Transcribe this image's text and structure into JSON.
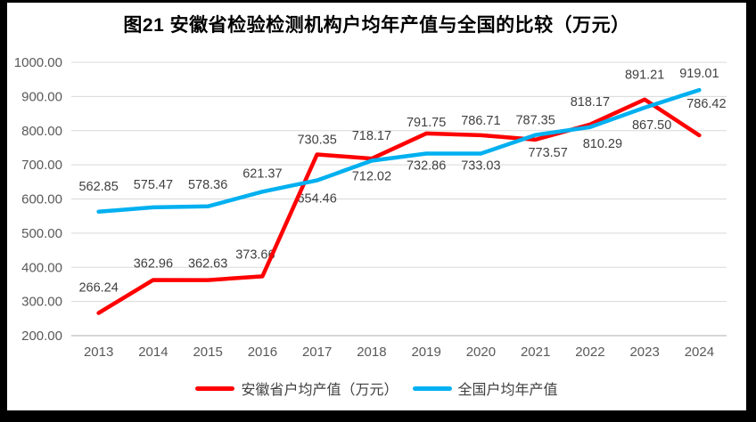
{
  "chart_data": {
    "type": "line",
    "title": "图21 安徽省检验检测机构户均年产值与全国的比较（万元）",
    "categories": [
      "2013",
      "2014",
      "2015",
      "2016",
      "2017",
      "2018",
      "2019",
      "2020",
      "2021",
      "2022",
      "2023",
      "2024"
    ],
    "series": [
      {
        "name": "安徽省户均产值（万元）",
        "color": "#FF0000",
        "values": [
          266.24,
          362.96,
          362.63,
          373.66,
          730.35,
          718.17,
          791.75,
          786.71,
          773.57,
          818.17,
          891.21,
          786.42
        ],
        "label_side": [
          "above",
          "above",
          "above",
          "above",
          "above",
          "above",
          "above",
          "above",
          "below",
          "above",
          "above",
          "above"
        ],
        "label_dx": [
          0,
          0,
          0,
          -8,
          0,
          0,
          0,
          0,
          14,
          0,
          0,
          8
        ],
        "label_dy": [
          -14,
          -4,
          -4,
          -10,
          -2,
          -11,
          2,
          -2,
          -2,
          -11,
          -13,
          -21
        ]
      },
      {
        "name": "全国户均年产值",
        "color": "#00B0F0",
        "values": [
          562.85,
          575.47,
          578.36,
          621.37,
          654.46,
          712.02,
          732.86,
          733.03,
          787.35,
          810.29,
          867.5,
          919.01
        ],
        "label_side": [
          "above",
          "above",
          "above",
          "above",
          "below",
          "below",
          "below",
          "below",
          "above",
          "below",
          "below",
          "above"
        ],
        "label_dx": [
          0,
          0,
          0,
          0,
          0,
          0,
          0,
          0,
          0,
          14,
          8,
          0
        ],
        "label_dy": [
          -14,
          -11,
          -10,
          -6,
          4,
          1,
          -3,
          -3,
          -2,
          2,
          3,
          -4
        ]
      }
    ],
    "ylim": [
      200,
      1000
    ],
    "y_ticks": [
      "200.00",
      "300.00",
      "400.00",
      "500.00",
      "600.00",
      "700.00",
      "800.00",
      "900.00",
      "1000.00"
    ],
    "xlabel": "",
    "ylabel": "",
    "grid": true,
    "legend_position": "bottom",
    "value_decimals": 2
  },
  "colors": {
    "gridline": "#D9D9D9",
    "axis_line": "#BFBFBF",
    "axis_text": "#595959",
    "data_label_text": "#404040",
    "title_text": "#000000",
    "frame": "#000000",
    "card": "#FFFFFF"
  }
}
